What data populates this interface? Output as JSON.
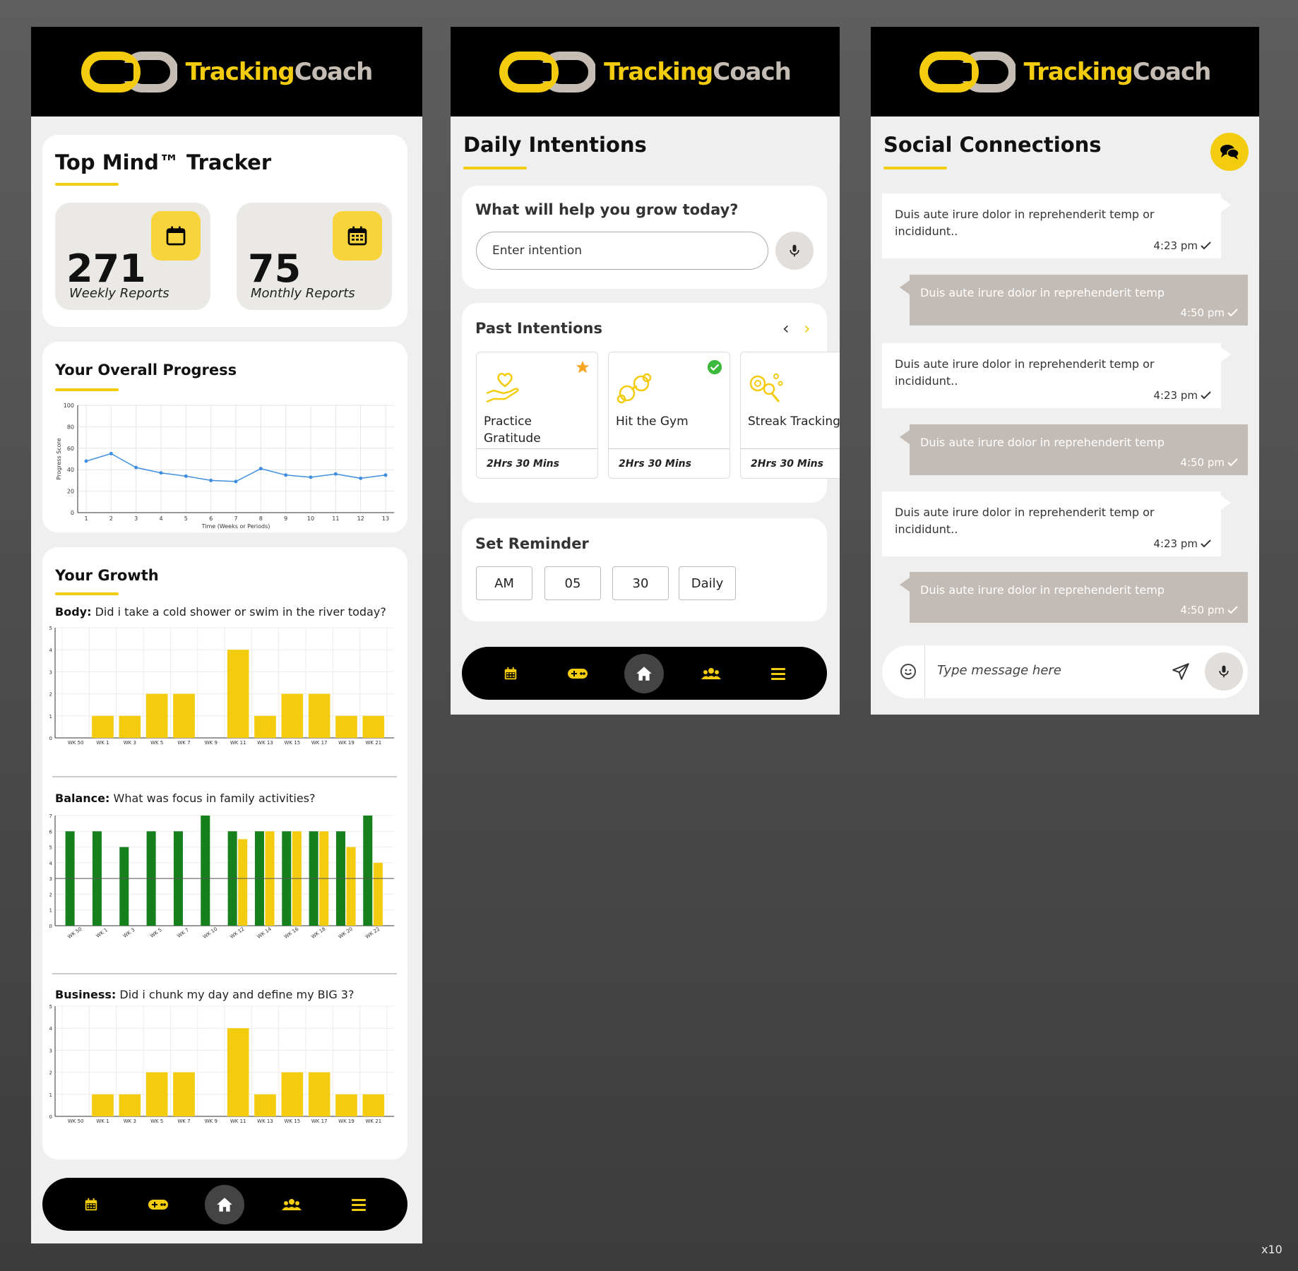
{
  "app": {
    "logo_part1": "Tracking",
    "logo_part2": "Coach"
  },
  "colors": {
    "accent": "#f4cc0f",
    "dark": "#000000",
    "green": "#16801c",
    "outgoing_bubble": "#c3bbb5",
    "line": "#3f8ee0"
  },
  "screen1": {
    "title": "Top Mind™ Tracker",
    "weekly": {
      "value": "271",
      "label": "Weekly Reports",
      "icon": "calendar-icon"
    },
    "monthly": {
      "value": "75",
      "label": "Monthly Reports",
      "icon": "calendar-grid-icon"
    },
    "progress_title": "Your Overall Progress",
    "growth_title": "Your Growth",
    "body_label": "Body:",
    "body_question": "Did i take a cold shower or swim in the river today?",
    "balance_label": "Balance:",
    "balance_question": "What was focus in family activities?",
    "business_label": "Business:",
    "business_question": "Did i chunk my day and define my BIG 3?"
  },
  "chart_data": [
    {
      "type": "line",
      "title": "Your Overall Progress",
      "xlabel": "Time (Weeks or Periods)",
      "ylabel": "Progress Score",
      "x": [
        1,
        2,
        3,
        4,
        5,
        6,
        7,
        8,
        9,
        10,
        11,
        12,
        13
      ],
      "values": [
        48,
        55,
        42,
        37,
        34,
        30,
        29,
        41,
        35,
        33,
        36,
        32,
        35
      ],
      "ylim": [
        0,
        100
      ],
      "yticks": [
        0,
        20,
        40,
        60,
        80,
        100
      ]
    },
    {
      "type": "bar",
      "title": "Body",
      "categories": [
        "WK 50",
        "",
        "WK 1",
        "",
        "WK 3",
        "",
        "WK 5",
        "",
        "WK 7",
        "",
        "WK 9",
        "",
        "WK 11",
        "",
        "WK 13",
        "",
        "WK 15",
        "",
        "WK 17",
        "",
        "WK 19",
        "",
        "WK 21"
      ],
      "slots": 12,
      "values": [
        0,
        1,
        1,
        2,
        2,
        0,
        4,
        1,
        2,
        2,
        1,
        1
      ],
      "labels": [
        "WK 50",
        "WK 1",
        "WK 3",
        "WK 5",
        "WK 7",
        "WK 9",
        "WK 11",
        "WK 13",
        "WK 15",
        "WK 17",
        "WK 19",
        "WK 21"
      ],
      "ylim": [
        0,
        5
      ],
      "yticks": [
        0,
        1,
        2,
        3,
        4,
        5
      ]
    },
    {
      "type": "bar",
      "title": "Balance",
      "labels": [
        "WK 50",
        "WK 1",
        "WK 3",
        "WK 5",
        "WK 7",
        "WK 10",
        "WK 12",
        "WK 14",
        "WK 16",
        "WK 18",
        "WK 20",
        "WK 22"
      ],
      "series": [
        {
          "name": "green",
          "values": [
            6,
            6,
            5,
            6,
            6,
            7,
            6,
            6,
            6,
            6,
            6,
            7
          ]
        },
        {
          "name": "yellow",
          "values": [
            0,
            0,
            0,
            0,
            0,
            0,
            5.5,
            6,
            6,
            6,
            5,
            4
          ]
        }
      ],
      "reference_line": 3,
      "ylim": [
        0,
        7
      ],
      "yticks": [
        0,
        1,
        2,
        3,
        4,
        5,
        6,
        7
      ]
    },
    {
      "type": "bar",
      "title": "Business",
      "values": [
        0,
        1,
        1,
        2,
        2,
        0,
        4,
        1,
        2,
        2,
        1,
        1
      ],
      "labels": [
        "WK 50",
        "WK 1",
        "WK 3",
        "WK 5",
        "WK 7",
        "WK 9",
        "WK 11",
        "WK 13",
        "WK 15",
        "WK 17",
        "WK 19",
        "WK 21"
      ],
      "ylim": [
        0,
        5
      ],
      "yticks": [
        0,
        1,
        2,
        3,
        4,
        5
      ]
    }
  ],
  "screen2": {
    "title": "Daily Intentions",
    "prompt": "What will help you grow today?",
    "intention_placeholder": "Enter intention",
    "past_title": "Past Intentions",
    "intentions": [
      {
        "name": "Practice Gratitude",
        "duration": "2Hrs 30 Mins",
        "icon": "heart-hand-icon",
        "badge": "star-icon"
      },
      {
        "name": "Hit the Gym",
        "duration": "2Hrs 30 Mins",
        "icon": "dumbbell-icon",
        "badge": "check-circle-icon"
      },
      {
        "name": "Streak Tracking",
        "duration": "2Hrs 30 Mins",
        "icon": "streak-icon",
        "badge": ""
      }
    ],
    "reminder_title": "Set Reminder",
    "reminder": {
      "ampm": "AM",
      "hour": "05",
      "minute": "30",
      "frequency": "Daily"
    }
  },
  "screen3": {
    "title": "Social Connections",
    "messages": [
      {
        "dir": "in",
        "text": "Duis aute irure dolor in reprehenderit temp or incididunt..",
        "time": "4:23 pm"
      },
      {
        "dir": "out",
        "text": "Duis aute irure dolor in reprehenderit temp",
        "time": "4:50 pm"
      },
      {
        "dir": "in",
        "text": "Duis aute irure dolor in reprehenderit temp or incididunt..",
        "time": "4:23 pm"
      },
      {
        "dir": "out",
        "text": "Duis aute irure dolor in reprehenderit temp",
        "time": "4:50 pm"
      },
      {
        "dir": "in",
        "text": "Duis aute irure dolor in reprehenderit temp or incididunt..",
        "time": "4:23 pm"
      },
      {
        "dir": "out",
        "text": "Duis aute irure dolor in reprehenderit temp",
        "time": "4:50 pm"
      }
    ],
    "message_placeholder": "Type message here"
  },
  "nav": [
    "calendar-icon",
    "gamepad-icon",
    "home-icon",
    "users-icon",
    "menu-icon"
  ],
  "footer": {
    "zoom": "x10"
  }
}
